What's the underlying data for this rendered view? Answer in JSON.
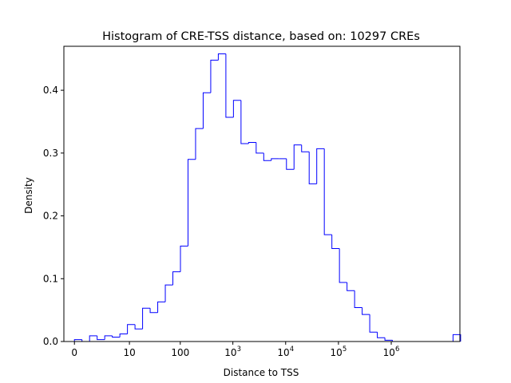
{
  "chart_data": {
    "type": "histogram",
    "title": "Histogram of CRE-TSS distance, based on: 10297 CREs",
    "xlabel": "Distance to TSS",
    "ylabel": "Density",
    "x_scale": "log(1+x)",
    "xlim": [
      -0.2,
      7.3
    ],
    "ylim": [
      0,
      0.47
    ],
    "grid": false,
    "legend": "none",
    "series_color": "#0000ff",
    "x_ticks": [
      {
        "value": 0,
        "base": "0",
        "exp": ""
      },
      {
        "value": 10,
        "base": "10",
        "exp": ""
      },
      {
        "value": 100,
        "base": "100",
        "exp": ""
      },
      {
        "value": 1000,
        "base": "10",
        "exp": "3"
      },
      {
        "value": 10000,
        "base": "10",
        "exp": "4"
      },
      {
        "value": 100000,
        "base": "10",
        "exp": "5"
      },
      {
        "value": 1000000,
        "base": "10",
        "exp": "6"
      }
    ],
    "y_ticks": [
      {
        "value": 0.0,
        "label": "0.0"
      },
      {
        "value": 0.1,
        "label": "0.1"
      },
      {
        "value": 0.2,
        "label": "0.2"
      },
      {
        "value": 0.3,
        "label": "0.3"
      },
      {
        "value": 0.4,
        "label": "0.4"
      }
    ],
    "bin_start": 0.0,
    "bin_width": 0.1434,
    "values": [
      0.003,
      0.0,
      0.009,
      0.003,
      0.009,
      0.007,
      0.012,
      0.027,
      0.02,
      0.053,
      0.046,
      0.063,
      0.09,
      0.111,
      0.152,
      0.29,
      0.339,
      0.396,
      0.448,
      0.458,
      0.357,
      0.384,
      0.315,
      0.317,
      0.3,
      0.288,
      0.291,
      0.291,
      0.274,
      0.313,
      0.302,
      0.251,
      0.307,
      0.17,
      0.148,
      0.094,
      0.081,
      0.054,
      0.043,
      0.015,
      0.006,
      0.002,
      0.0,
      0.0,
      0.0,
      0.0,
      0.0,
      0.0,
      0.0,
      0.0,
      0.011
    ]
  }
}
